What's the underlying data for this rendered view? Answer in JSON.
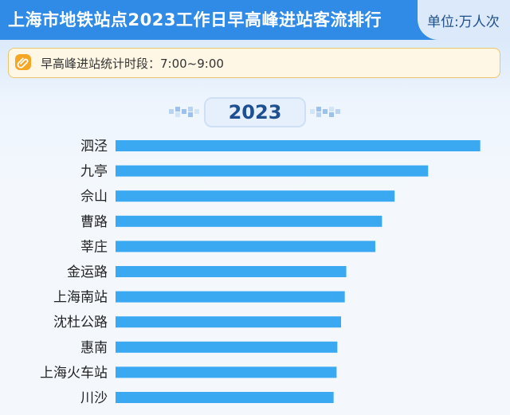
{
  "header": {
    "title": "上海市地铁站点2023工作日早高峰进站客流排行",
    "unit": "单位:万人次"
  },
  "note": {
    "text": "早高峰进站统计时段：7:00~9:00",
    "icon": "paperclip-icon"
  },
  "year_badge": "2023",
  "colors": {
    "header_bg": "#2f8be6",
    "bar": "#3aa9f2",
    "badge_text": "#1d4f91",
    "note_border": "#f0c56a",
    "note_icon": "#f5a623"
  },
  "chart_data": {
    "type": "bar",
    "orientation": "horizontal",
    "categories": [
      "泗泾",
      "九亭",
      "佘山",
      "曹路",
      "莘庄",
      "金运路",
      "上海南站",
      "沈杜公路",
      "惠南",
      "上海火车站",
      "川沙"
    ],
    "values": [
      4.9,
      4.2,
      3.75,
      3.58,
      3.49,
      3.1,
      3.08,
      3.03,
      2.98,
      2.97,
      2.93
    ],
    "xlim": [
      0,
      5
    ],
    "value_labels_shown": false,
    "grid": false
  }
}
